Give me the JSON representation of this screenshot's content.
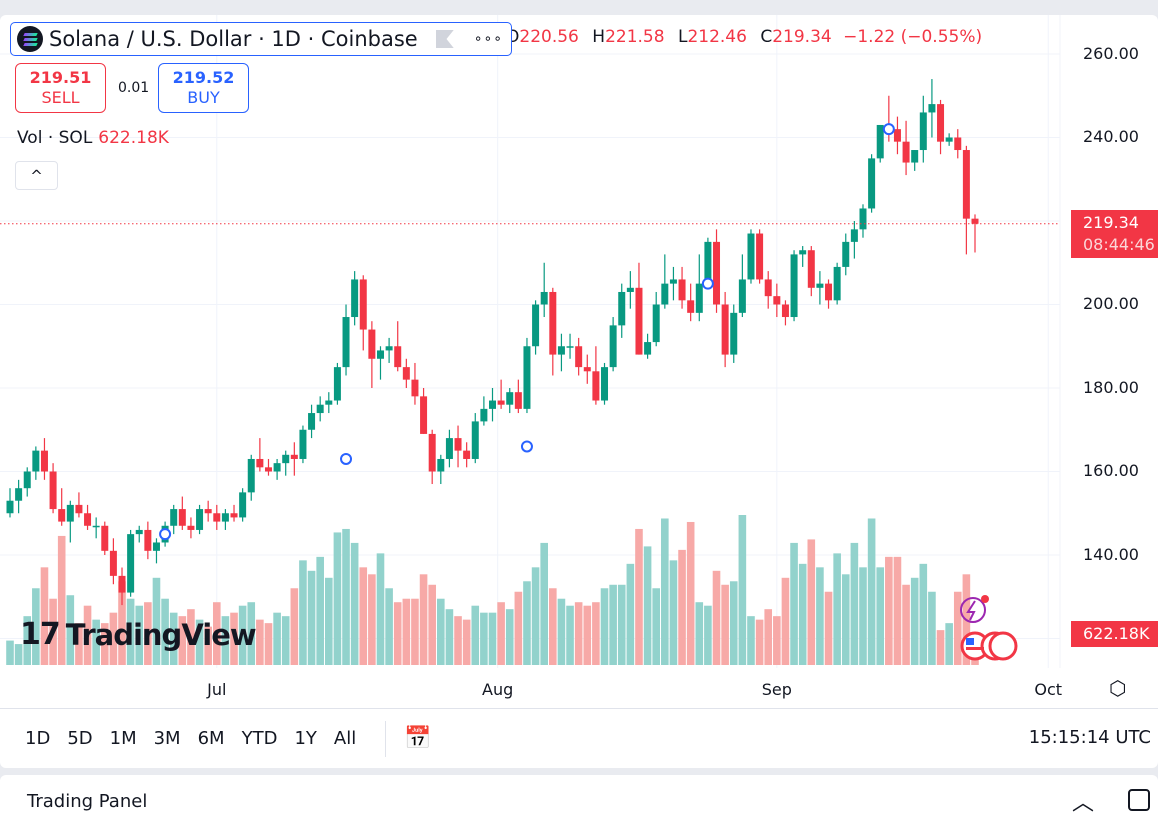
{
  "header": {
    "title": "Solana / U.S. Dollar · 1D · Coinbase",
    "logo_icon": "solana-logo-icon",
    "ohlc": {
      "o_label": "O",
      "o": "220.56",
      "h_label": "H",
      "h": "221.58",
      "l_label": "L",
      "l": "212.46",
      "c_label": "C",
      "c": "219.34",
      "change": "−1.22 (−0.55%)"
    }
  },
  "trade": {
    "sell_price": "219.51",
    "sell_label": "SELL",
    "spread": "0.01",
    "buy_price": "219.52",
    "buy_label": "BUY"
  },
  "volume_legend": {
    "label": "Vol · SOL",
    "value": "622.18K"
  },
  "price_axis": {
    "ticks": [
      "260.00",
      "240.00",
      "200.00",
      "180.00",
      "160.00",
      "140.00"
    ],
    "last_price": "219.34",
    "countdown": "08:44:46",
    "last_volume": "622.18K"
  },
  "time_axis": {
    "months": [
      {
        "label": "Jul",
        "index": 24
      },
      {
        "label": "Aug",
        "index": 56.6
      },
      {
        "label": "Sep",
        "index": 89
      },
      {
        "label": "Oct",
        "index": 120.5
      }
    ]
  },
  "toolbar": {
    "ranges": [
      "1D",
      "5D",
      "1M",
      "3M",
      "6M",
      "YTD",
      "1Y",
      "All"
    ],
    "time": "15:15:14 UTC"
  },
  "panel": {
    "title": "Trading Panel"
  },
  "watermark": "TradingView",
  "colors": {
    "up": "#089981",
    "down": "#f23645",
    "vol_up": "#92d2cc",
    "vol_down": "#f7a9a7",
    "accent": "#2962ff"
  },
  "chart_data": {
    "type": "candlestick",
    "ylim": [
      130,
      262
    ],
    "grid": true,
    "ohlc": [
      [
        150,
        156,
        149,
        153
      ],
      [
        153,
        158,
        150,
        156
      ],
      [
        156,
        161,
        154,
        160
      ],
      [
        160,
        166,
        158,
        165
      ],
      [
        165,
        168,
        158,
        160
      ],
      [
        160,
        162,
        150,
        151
      ],
      [
        151,
        156,
        147,
        148
      ],
      [
        148,
        153,
        143,
        152
      ],
      [
        152,
        155,
        149,
        150
      ],
      [
        150,
        152,
        146,
        147
      ],
      [
        147,
        149,
        144,
        147
      ],
      [
        147,
        148,
        140,
        141
      ],
      [
        141,
        144,
        133,
        135
      ],
      [
        135,
        137,
        128,
        131
      ],
      [
        131,
        146,
        130,
        145
      ],
      [
        145,
        147,
        143,
        146
      ],
      [
        146,
        148,
        139,
        141
      ],
      [
        141,
        144,
        138,
        143
      ],
      [
        143,
        148,
        142,
        147
      ],
      [
        147,
        152,
        145,
        151
      ],
      [
        151,
        154,
        146,
        147
      ],
      [
        147,
        149,
        144,
        146
      ],
      [
        146,
        152,
        145,
        151
      ],
      [
        151,
        153,
        148,
        150
      ],
      [
        150,
        152,
        146,
        148
      ],
      [
        148,
        151,
        146,
        150
      ],
      [
        150,
        152,
        148,
        149
      ],
      [
        149,
        156,
        148,
        155
      ],
      [
        155,
        164,
        153,
        163
      ],
      [
        163,
        168,
        160,
        161
      ],
      [
        161,
        163,
        159,
        160
      ],
      [
        160,
        163,
        158,
        162
      ],
      [
        162,
        165,
        159,
        164
      ],
      [
        164,
        167,
        159,
        163
      ],
      [
        163,
        171,
        162,
        170
      ],
      [
        170,
        176,
        168,
        174
      ],
      [
        174,
        178,
        172,
        176
      ],
      [
        176,
        179,
        174,
        177
      ],
      [
        177,
        186,
        176,
        185
      ],
      [
        185,
        200,
        183,
        197
      ],
      [
        197,
        208,
        195,
        206
      ],
      [
        206,
        207,
        189,
        194
      ],
      [
        194,
        196,
        180,
        187
      ],
      [
        187,
        190,
        182,
        189
      ],
      [
        189,
        192,
        186,
        190
      ],
      [
        190,
        196,
        184,
        185
      ],
      [
        185,
        187,
        180,
        182
      ],
      [
        182,
        186,
        176,
        178
      ],
      [
        178,
        180,
        169,
        169
      ],
      [
        169,
        170,
        157,
        160
      ],
      [
        160,
        164,
        157,
        163
      ],
      [
        163,
        170,
        161,
        168
      ],
      [
        168,
        171,
        161,
        165
      ],
      [
        165,
        167,
        161,
        163
      ],
      [
        163,
        174,
        162,
        172
      ],
      [
        172,
        178,
        171,
        175
      ],
      [
        175,
        180,
        172,
        177
      ],
      [
        177,
        182,
        175,
        176
      ],
      [
        176,
        180,
        174,
        179
      ],
      [
        179,
        182,
        174,
        175
      ],
      [
        175,
        192,
        174,
        190
      ],
      [
        190,
        201,
        188,
        200
      ],
      [
        200,
        210,
        197,
        203
      ],
      [
        203,
        204,
        183,
        188
      ],
      [
        188,
        193,
        184,
        190
      ],
      [
        190,
        193,
        187,
        190
      ],
      [
        190,
        192,
        183,
        185
      ],
      [
        185,
        188,
        181,
        184
      ],
      [
        184,
        190,
        176,
        177
      ],
      [
        177,
        186,
        176,
        185
      ],
      [
        185,
        197,
        184,
        195
      ],
      [
        195,
        205,
        192,
        203
      ],
      [
        203,
        208,
        199,
        204
      ],
      [
        204,
        210,
        188,
        188
      ],
      [
        188,
        193,
        187,
        191
      ],
      [
        191,
        203,
        190,
        200
      ],
      [
        200,
        212,
        199,
        205
      ],
      [
        205,
        209,
        201,
        206
      ],
      [
        206,
        209,
        199,
        201
      ],
      [
        201,
        205,
        196,
        198
      ],
      [
        198,
        212,
        196,
        205
      ],
      [
        205,
        216,
        204,
        215
      ],
      [
        215,
        218,
        198,
        200
      ],
      [
        200,
        203,
        185,
        188
      ],
      [
        188,
        200,
        186,
        198
      ],
      [
        198,
        212,
        197,
        206
      ],
      [
        206,
        218,
        205,
        217
      ],
      [
        217,
        218,
        205,
        206
      ],
      [
        206,
        208,
        199,
        202
      ],
      [
        202,
        205,
        197,
        200
      ],
      [
        200,
        201,
        195,
        197
      ],
      [
        197,
        213,
        196,
        212
      ],
      [
        212,
        214,
        209,
        213
      ],
      [
        213,
        214,
        202,
        204
      ],
      [
        204,
        208,
        200,
        205
      ],
      [
        205,
        206,
        199,
        201
      ],
      [
        201,
        210,
        200,
        209
      ],
      [
        209,
        217,
        207,
        215
      ],
      [
        215,
        220,
        211,
        218
      ],
      [
        218,
        224,
        216,
        223
      ],
      [
        223,
        236,
        222,
        235
      ],
      [
        235,
        243,
        234,
        243
      ],
      [
        243,
        250,
        239,
        242
      ],
      [
        242,
        245,
        236,
        239
      ],
      [
        239,
        244,
        231,
        234
      ],
      [
        234,
        237,
        232,
        237
      ],
      [
        237,
        250,
        234,
        246
      ],
      [
        246,
        254,
        240,
        248
      ],
      [
        248,
        249,
        236,
        239
      ],
      [
        239,
        241,
        238,
        240
      ],
      [
        240,
        242,
        235,
        237
      ],
      [
        237,
        238,
        212,
        220.56
      ],
      [
        220.56,
        221.58,
        212.46,
        219.34
      ]
    ],
    "volume_k": [
      700,
      600,
      1400,
      2200,
      2800,
      1900,
      3700,
      2000,
      1200,
      1700,
      1300,
      1200,
      1500,
      2400,
      1900,
      1700,
      1800,
      2500,
      1900,
      1500,
      1400,
      1600,
      1300,
      1100,
      1800,
      1400,
      1500,
      1700,
      1800,
      1300,
      1200,
      1500,
      1400,
      2200,
      3000,
      2700,
      3100,
      2500,
      3800,
      3900,
      3500,
      2800,
      2600,
      3200,
      2200,
      1800,
      1900,
      1900,
      2600,
      2300,
      1900,
      1600,
      1400,
      1300,
      1700,
      1500,
      1500,
      1800,
      1600,
      2100,
      2400,
      2800,
      3500,
      2200,
      1900,
      1700,
      1800,
      1700,
      1800,
      2200,
      2300,
      2300,
      2900,
      3900,
      3400,
      2200,
      4200,
      3000,
      3300,
      4100,
      1800,
      1700,
      2700,
      2300,
      2400,
      4300,
      1400,
      1300,
      1600,
      1400,
      2500,
      3500,
      2900,
      3600,
      2800,
      2100,
      3200,
      2600,
      3500,
      2800,
      4200,
      2800,
      3100,
      3100,
      2300,
      2500,
      2900,
      2100,
      1000,
      1200,
      2100,
      2600,
      622.18
    ],
    "markers": [
      {
        "index": 18,
        "price": 145
      },
      {
        "index": 39,
        "price": 163
      },
      {
        "index": 60,
        "price": 166
      },
      {
        "index": 81,
        "price": 205
      },
      {
        "index": 102,
        "price": 242
      }
    ],
    "last_price_line": 219.34
  }
}
